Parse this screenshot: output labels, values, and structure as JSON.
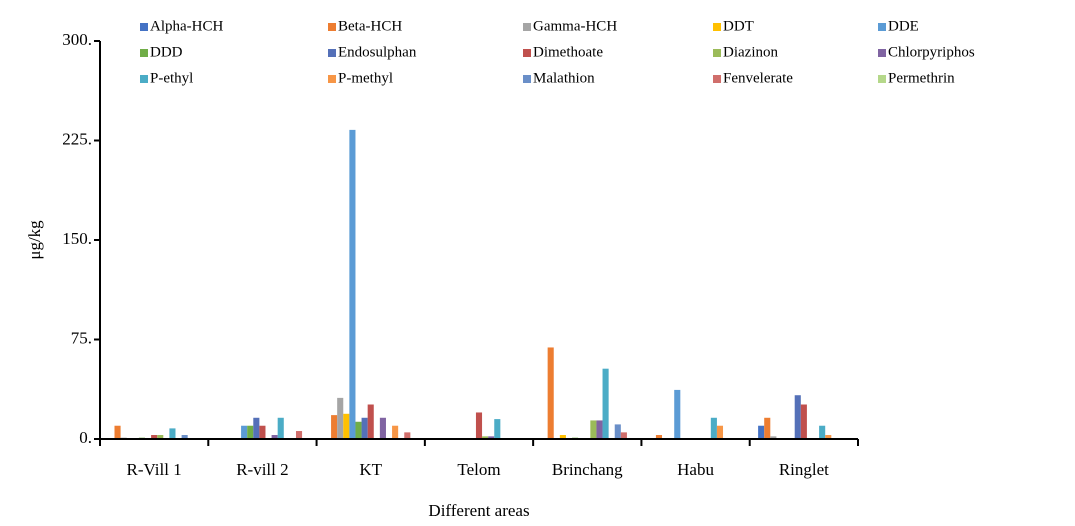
{
  "chart_data": {
    "type": "bar",
    "x_label": "Different areas",
    "y_label": "μg/kg",
    "categories": [
      "R-Vill 1",
      "R-vill 2",
      "KT",
      "Telom",
      "Brinchang",
      "Habu",
      "Ringlet"
    ],
    "ylim": [
      0,
      300
    ],
    "yticks": [
      {
        "value": 0,
        "label": "0."
      },
      {
        "value": 75,
        "label": "75."
      },
      {
        "value": 150,
        "label": "150."
      },
      {
        "value": 225,
        "label": "225."
      },
      {
        "value": 300,
        "label": "300."
      }
    ],
    "legend": "top",
    "series": [
      {
        "name": "Alpha-HCH",
        "color": "#4472C4",
        "values": [
          0,
          0,
          0,
          0,
          0,
          0,
          10
        ]
      },
      {
        "name": "Beta-HCH",
        "color": "#ED7D31",
        "values": [
          10,
          0,
          18,
          0,
          69,
          3,
          16
        ]
      },
      {
        "name": "Gamma-HCH",
        "color": "#A5A5A5",
        "values": [
          1,
          0,
          31,
          0,
          0,
          0,
          2
        ]
      },
      {
        "name": "DDT",
        "color": "#FFC000",
        "values": [
          0,
          0,
          19,
          0,
          3,
          0,
          0
        ]
      },
      {
        "name": "DDE",
        "color": "#5B9BD5",
        "values": [
          0,
          10,
          233,
          0,
          0,
          37,
          0
        ]
      },
      {
        "name": "DDD",
        "color": "#70AD47",
        "values": [
          1,
          10,
          13,
          0,
          1,
          0,
          0
        ]
      },
      {
        "name": "Endosulphan",
        "color": "#5470B8",
        "values": [
          0,
          16,
          16,
          0,
          0,
          0,
          33
        ]
      },
      {
        "name": "Dimethoate",
        "color": "#C0504D",
        "values": [
          3,
          10,
          26,
          20,
          0,
          0,
          26
        ]
      },
      {
        "name": "Diazinon",
        "color": "#9BBB59",
        "values": [
          3,
          0,
          0,
          2,
          14,
          0,
          0
        ]
      },
      {
        "name": "Chlorpyriphos",
        "color": "#8064A2",
        "values": [
          0,
          3,
          16,
          2,
          14,
          0,
          0
        ]
      },
      {
        "name": "P-ethyl",
        "color": "#4BACC6",
        "values": [
          8,
          16,
          0,
          15,
          53,
          16,
          10
        ]
      },
      {
        "name": "P-methyl",
        "color": "#F79646",
        "values": [
          0,
          0,
          10,
          0,
          0,
          10,
          3
        ]
      },
      {
        "name": "Malathion",
        "color": "#6A8FC8",
        "values": [
          3,
          0,
          0,
          0,
          11,
          0,
          0
        ]
      },
      {
        "name": "Fenvelerate",
        "color": "#D06E6B",
        "values": [
          0,
          6,
          5,
          0,
          5,
          0,
          0
        ]
      },
      {
        "name": "Permethrin",
        "color": "#B5D88A",
        "values": [
          0,
          0,
          0,
          0,
          0,
          0,
          0
        ]
      }
    ]
  }
}
